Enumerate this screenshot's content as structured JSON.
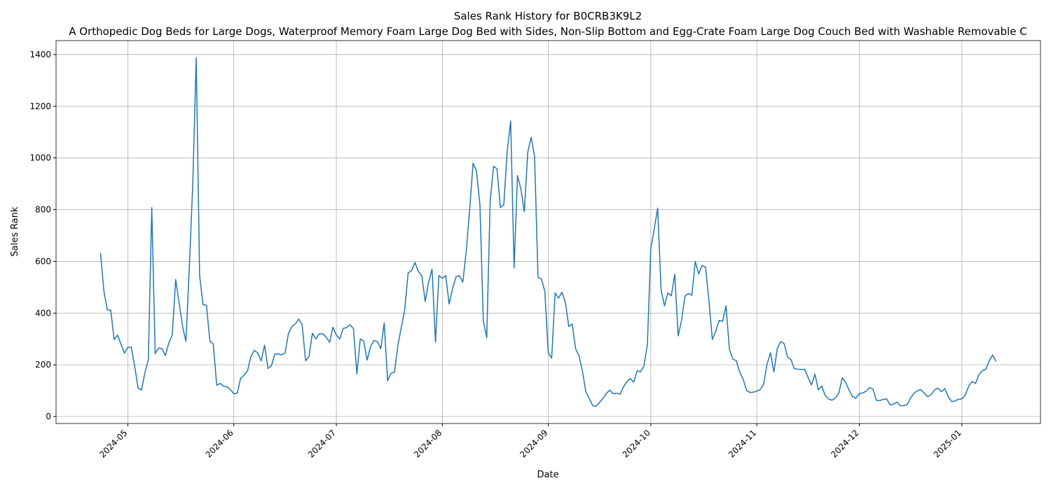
{
  "chart_data": {
    "type": "line",
    "title": "Sales Rank History for B0CRB3K9L2",
    "subtitle": "A Orthopedic Dog Beds for Large Dogs, Waterproof Memory Foam Large Dog Bed with Sides, Non-Slip Bottom and Egg-Crate Foam Large Dog Couch Bed with Washable Removable C",
    "x_label": "Date",
    "y_label": "Sales Rank",
    "color": "#1f77b4",
    "grid": true,
    "values": [
      632,
      485,
      412,
      412,
      297,
      315,
      280,
      245,
      268,
      268,
      195,
      110,
      102,
      170,
      220,
      808,
      243,
      265,
      262,
      236,
      285,
      316,
      530,
      440,
      350,
      290,
      580,
      900,
      1388,
      545,
      433,
      430,
      292,
      280,
      121,
      128,
      117,
      115,
      105,
      88,
      90,
      148,
      160,
      176,
      232,
      256,
      246,
      215,
      276,
      186,
      196,
      242,
      242,
      238,
      246,
      322,
      348,
      358,
      377,
      355,
      216,
      232,
      322,
      300,
      320,
      320,
      308,
      287,
      345,
      315,
      300,
      341,
      344,
      355,
      340,
      165,
      300,
      292,
      218,
      270,
      294,
      290,
      262,
      362,
      138,
      167,
      172,
      275,
      345,
      412,
      555,
      564,
      596,
      560,
      545,
      445,
      520,
      570,
      288,
      545,
      535,
      545,
      435,
      495,
      540,
      545,
      520,
      640,
      800,
      980,
      950,
      820,
      370,
      305,
      832,
      968,
      958,
      808,
      820,
      1030,
      1143,
      574,
      932,
      880,
      792,
      1022,
      1080,
      1005,
      538,
      532,
      484,
      246,
      226,
      478,
      458,
      481,
      442,
      348,
      358,
      262,
      234,
      175,
      95,
      70,
      42,
      40,
      55,
      70,
      90,
      102,
      88,
      90,
      86,
      115,
      135,
      147,
      133,
      178,
      173,
      196,
      280,
      650,
      725,
      806,
      490,
      428,
      478,
      467,
      550,
      312,
      372,
      466,
      476,
      469,
      600,
      552,
      584,
      578,
      450,
      298,
      330,
      372,
      368,
      428,
      260,
      222,
      216,
      172,
      145,
      101,
      93,
      94,
      98,
      104,
      125,
      202,
      247,
      172,
      263,
      290,
      282,
      230,
      220,
      185,
      183,
      182,
      182,
      152,
      122,
      164,
      103,
      118,
      82,
      68,
      63,
      72,
      90,
      150,
      132,
      102,
      77,
      71,
      89,
      91,
      98,
      112,
      106,
      62,
      62,
      66,
      68,
      45,
      48,
      56,
      42,
      42,
      46,
      72,
      90,
      100,
      104,
      90,
      77,
      84,
      103,
      110,
      96,
      108,
      77,
      58,
      60,
      67,
      68,
      83,
      118,
      135,
      128,
      162,
      178,
      182,
      216,
      238,
      213
    ],
    "xlim": [
      -13,
      275
    ],
    "xticks": [
      {
        "value": 8,
        "label": "2024-05"
      },
      {
        "value": 39,
        "label": "2024-06"
      },
      {
        "value": 69,
        "label": "2024-07"
      },
      {
        "value": 100,
        "label": "2024-08"
      },
      {
        "value": 131,
        "label": "2024-09"
      },
      {
        "value": 161,
        "label": "2024-10"
      },
      {
        "value": 192,
        "label": "2024-11"
      },
      {
        "value": 222,
        "label": "2024-12"
      },
      {
        "value": 252,
        "label": "2025-01"
      }
    ],
    "ylim": [
      -27,
      1454
    ],
    "yticks": [
      0,
      200,
      400,
      600,
      800,
      1000,
      1200,
      1400
    ]
  }
}
